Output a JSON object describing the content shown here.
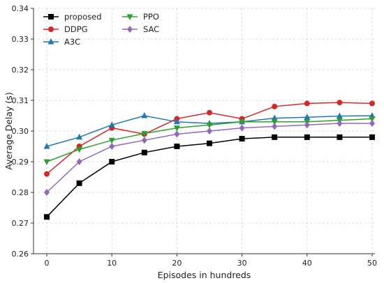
{
  "chart_data": {
    "type": "line",
    "title": "",
    "xlabel": "Episodes in hundreds",
    "ylabel": "Average Delay (s)",
    "xlim": [
      0,
      50
    ],
    "ylim": [
      0.26,
      0.34
    ],
    "x_ticks": [
      0,
      10,
      20,
      30,
      40,
      50
    ],
    "y_ticks": [
      0.26,
      0.27,
      0.28,
      0.29,
      0.3,
      0.31,
      0.32,
      0.33,
      0.34
    ],
    "x_tick_labels": [
      "0",
      "10",
      "20",
      "30",
      "40",
      "50"
    ],
    "y_tick_labels": [
      "0.26",
      "0.27",
      "0.28",
      "0.29",
      "0.30",
      "0.31",
      "0.32",
      "0.33",
      "0.34"
    ],
    "grid": true,
    "legend_position": "top-left",
    "x": [
      0,
      5,
      10,
      15,
      20,
      25,
      30,
      35,
      40,
      45,
      50
    ],
    "series": [
      {
        "name": "proposed",
        "color": "#000000",
        "marker": "square",
        "values": [
          0.272,
          0.283,
          0.29,
          0.293,
          0.295,
          0.296,
          0.2975,
          0.298,
          0.298,
          0.298,
          0.298
        ]
      },
      {
        "name": "DDPG",
        "color": "#d62728",
        "marker": "circle",
        "values": [
          0.286,
          0.295,
          0.301,
          0.299,
          0.304,
          0.306,
          0.304,
          0.308,
          0.309,
          0.3093,
          0.309
        ]
      },
      {
        "name": "A3C",
        "color": "#1f77b4",
        "marker": "triangle-up",
        "values": [
          0.295,
          0.298,
          0.302,
          0.305,
          0.303,
          0.3025,
          0.303,
          0.3042,
          0.3045,
          0.3049,
          0.305
        ]
      },
      {
        "name": "PPO",
        "color": "#2ca02c",
        "marker": "triangle-down",
        "values": [
          0.29,
          0.294,
          0.297,
          0.2992,
          0.301,
          0.302,
          0.303,
          0.303,
          0.303,
          0.3035,
          0.304
        ]
      },
      {
        "name": "SAC",
        "color": "#9467bd",
        "marker": "diamond",
        "values": [
          0.28,
          0.29,
          0.295,
          0.297,
          0.299,
          0.3,
          0.301,
          0.3015,
          0.302,
          0.3025,
          0.3025
        ]
      }
    ],
    "legend_order": [
      "proposed",
      "DDPG",
      "A3C",
      "PPO",
      "SAC"
    ]
  }
}
